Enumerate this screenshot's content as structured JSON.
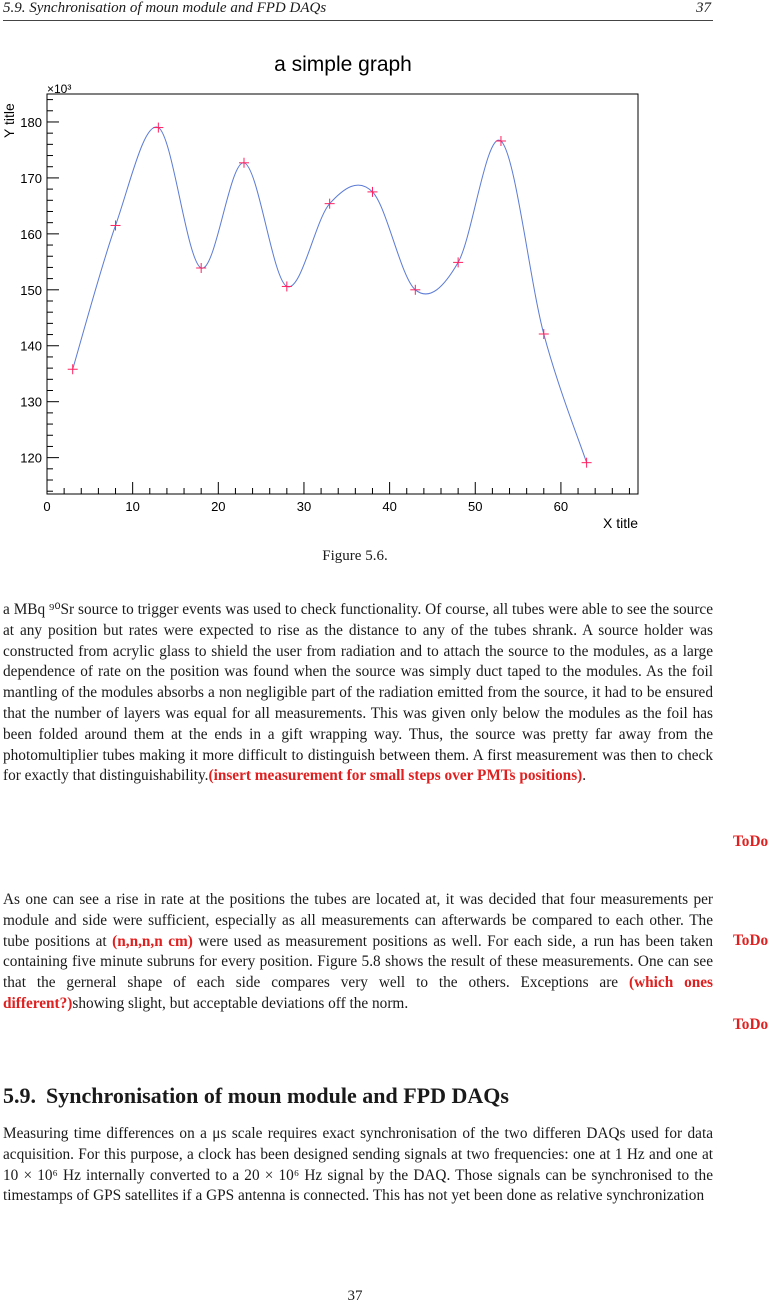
{
  "header": {
    "section": "5.9.  Synchronisation of moun module and FPD DAQs",
    "page": "37"
  },
  "chart_data": {
    "type": "line",
    "title": "a simple graph",
    "xlabel": "X title",
    "ylabel": "Y title",
    "y_multiplier": "×10³",
    "xlim": [
      0,
      69
    ],
    "ylim": [
      113.5,
      185
    ],
    "xticks": [
      0,
      10,
      20,
      30,
      40,
      50,
      60
    ],
    "yticks": [
      120,
      130,
      140,
      150,
      160,
      170,
      180
    ],
    "grid": false,
    "series": [
      {
        "x": [
          3,
          8,
          13,
          18,
          23,
          28,
          33,
          38,
          43,
          48,
          53,
          58,
          63
        ],
        "y": [
          135.8,
          161.5,
          179,
          153.9,
          172.7,
          150.6,
          165.4,
          167.5,
          150,
          154.9,
          176.6,
          142.1,
          119.1
        ],
        "marker": "+",
        "smooth": true
      }
    ],
    "colors": {
      "line": "#5b7bd5",
      "marker": "#ff2060"
    }
  },
  "figure": {
    "caption": "Figure 5.6."
  },
  "paragraphs": {
    "p1_text": "a MBq ⁹⁰Sr source to trigger events was used to check functionality. Of course, all tubes were able to see the source at any position but rates were expected to rise as the distance to any of the tubes shrank. A source holder was constructed from acrylic glass to shield the user from radiation and to attach the source to the modules, as a large dependence of rate on the position was found when the source was simply duct taped to the modules. As the foil mantling of the modules absorbs a non negligible part of the radiation emitted from the source, it had to be ensured that the number of layers was equal for all measurements. This was given only below the modules as the foil has been folded around them at the ends in a gift wrapping way. Thus, the source was pretty far away from the photomultiplier tubes making it more difficult to distinguish between them. A first measurement was then to check for exactly that distinguishability.",
    "p1_todo": "(insert measurement for small steps over PMTs positions)",
    "p1_end": ".",
    "p2_a": "As one can see a rise in rate at the positions the tubes are located at, it was decided that four measurements per module and side were sufficient, especially as all measurements can afterwards be compared to each other. The tube positions at ",
    "p2_todo1": "(n,n,n,n cm)",
    "p2_b": " were used as measurement positions as well. For each side, a run has been taken containing five minute subruns for every position. Figure 5.8 shows the result of these measurements. One can see that the gerneral shape of each side compares very well to the others. Exceptions are ",
    "p2_todo2": "(which ones different?)",
    "p2_c": "showing slight, but acceptable deviations off the norm.",
    "p3": "Measuring time differences on a μs scale requires exact synchronisation of the two differen DAQs used for data acquisition. For this purpose, a clock has been designed sending signals at two frequencies: one at 1 Hz and one at 10 × 10⁶ Hz internally converted to a 20 × 10⁶ Hz signal by the DAQ. Those signals can be synchronised to the timestamps of GPS satellites if a GPS antenna is connected. This has not yet been done as relative synchronization"
  },
  "todo_label": "ToDo",
  "section": {
    "number": "5.9.",
    "title": "Synchronisation of moun module and FPD DAQs"
  },
  "page_number": "37"
}
